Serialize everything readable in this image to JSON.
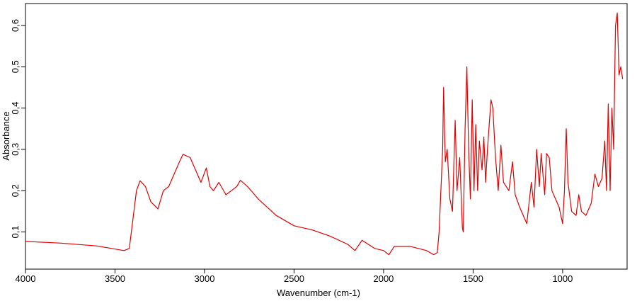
{
  "chart_data": {
    "type": "line",
    "x_label": "Wavenumber (cm-1)",
    "y_label": "Absorbance",
    "xlim": [
      4000,
      640
    ],
    "ylim": [
      0.01,
      0.653
    ],
    "xticks": [
      4000,
      3500,
      3000,
      2500,
      2000,
      1500,
      1000
    ],
    "yticks": [
      {
        "value": 0.1,
        "label": "0,1"
      },
      {
        "value": 0.2,
        "label": "0,2"
      },
      {
        "value": 0.3,
        "label": "0,3"
      },
      {
        "value": 0.4,
        "label": "0,4"
      },
      {
        "value": 0.5,
        "label": "0,5"
      },
      {
        "value": 0.6,
        "label": "0,6"
      }
    ],
    "series": [
      {
        "color": "#e00000",
        "x": [
          4000,
          3800,
          3600,
          3450,
          3420,
          3380,
          3360,
          3330,
          3300,
          3260,
          3230,
          3200,
          3170,
          3140,
          3120,
          3080,
          3050,
          3020,
          2990,
          2970,
          2950,
          2920,
          2880,
          2850,
          2820,
          2800,
          2760,
          2700,
          2600,
          2500,
          2400,
          2300,
          2200,
          2160,
          2120,
          2050,
          2000,
          1970,
          1940,
          1850,
          1760,
          1720,
          1700,
          1690,
          1670,
          1665,
          1655,
          1645,
          1630,
          1615,
          1600,
          1590,
          1575,
          1560,
          1555,
          1545,
          1535,
          1525,
          1515,
          1505,
          1495,
          1485,
          1475,
          1465,
          1450,
          1440,
          1430,
          1420,
          1400,
          1390,
          1375,
          1360,
          1345,
          1330,
          1300,
          1280,
          1265,
          1240,
          1210,
          1200,
          1175,
          1160,
          1145,
          1130,
          1120,
          1100,
          1090,
          1075,
          1060,
          1040,
          1020,
          1000,
          990,
          980,
          970,
          950,
          925,
          910,
          895,
          870,
          840,
          820,
          800,
          780,
          765,
          755,
          745,
          735,
          725,
          715,
          705,
          695,
          685,
          675,
          665
        ],
        "values": [
          0.077,
          0.073,
          0.066,
          0.055,
          0.06,
          0.2,
          0.224,
          0.21,
          0.173,
          0.156,
          0.2,
          0.21,
          0.24,
          0.27,
          0.288,
          0.28,
          0.25,
          0.22,
          0.255,
          0.21,
          0.2,
          0.22,
          0.19,
          0.2,
          0.21,
          0.225,
          0.21,
          0.18,
          0.14,
          0.115,
          0.105,
          0.09,
          0.07,
          0.055,
          0.08,
          0.06,
          0.055,
          0.045,
          0.065,
          0.065,
          0.055,
          0.045,
          0.05,
          0.1,
          0.3,
          0.45,
          0.27,
          0.3,
          0.18,
          0.15,
          0.37,
          0.2,
          0.28,
          0.11,
          0.1,
          0.35,
          0.5,
          0.3,
          0.18,
          0.42,
          0.2,
          0.36,
          0.2,
          0.32,
          0.25,
          0.33,
          0.22,
          0.3,
          0.42,
          0.4,
          0.28,
          0.2,
          0.31,
          0.22,
          0.2,
          0.27,
          0.19,
          0.16,
          0.13,
          0.12,
          0.22,
          0.16,
          0.3,
          0.21,
          0.29,
          0.19,
          0.29,
          0.28,
          0.2,
          0.18,
          0.16,
          0.12,
          0.2,
          0.35,
          0.22,
          0.15,
          0.14,
          0.19,
          0.15,
          0.14,
          0.17,
          0.24,
          0.21,
          0.23,
          0.32,
          0.2,
          0.41,
          0.2,
          0.4,
          0.3,
          0.6,
          0.63,
          0.48,
          0.5,
          0.47
        ]
      }
    ]
  }
}
